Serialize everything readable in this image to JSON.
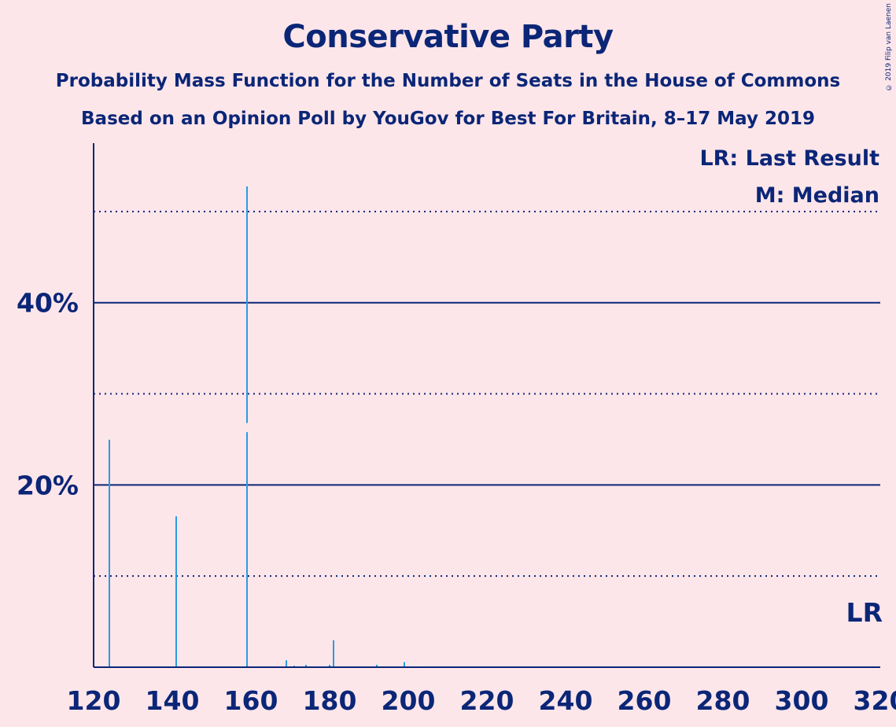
{
  "title": "Conservative Party",
  "subtitle1": "Probability Mass Function for the Number of Seats in the House of Commons",
  "subtitle2": "Based on an Opinion Poll by YouGov for Best For Britain, 8–17 May 2019",
  "copyright": "© 2019 Filip van Laenen",
  "legend": {
    "last_result": "LR: Last Result",
    "median": "M: Median"
  },
  "lr_marker": "LR",
  "colors": {
    "background": "#fde6ea",
    "axis": "#0b2677",
    "bar": "#2b9be0"
  },
  "chart_data": {
    "type": "bar",
    "title": "Conservative Party",
    "xlim": [
      120,
      320
    ],
    "ylim": [
      0,
      57.5
    ],
    "x_ticks": [
      120,
      140,
      160,
      180,
      200,
      220,
      240,
      260,
      280,
      300,
      320
    ],
    "y_ticks": [
      {
        "value": 20,
        "label": "20%"
      },
      {
        "value": 40,
        "label": "40%"
      }
    ],
    "dotted_gridlines": [
      10,
      30,
      50
    ],
    "median": 159,
    "last_result": 317,
    "bars": [
      {
        "x": 124,
        "y": 25.0
      },
      {
        "x": 141,
        "y": 16.6
      },
      {
        "x": 157,
        "y": 0.1
      },
      {
        "x": 159,
        "y": 52.8
      },
      {
        "x": 169,
        "y": 0.8
      },
      {
        "x": 171,
        "y": 0.2
      },
      {
        "x": 174,
        "y": 0.3
      },
      {
        "x": 180,
        "y": 0.3
      },
      {
        "x": 181,
        "y": 3.0
      },
      {
        "x": 192,
        "y": 0.3
      },
      {
        "x": 199,
        "y": 0.6
      },
      {
        "x": 203,
        "y": 0.1
      }
    ]
  }
}
